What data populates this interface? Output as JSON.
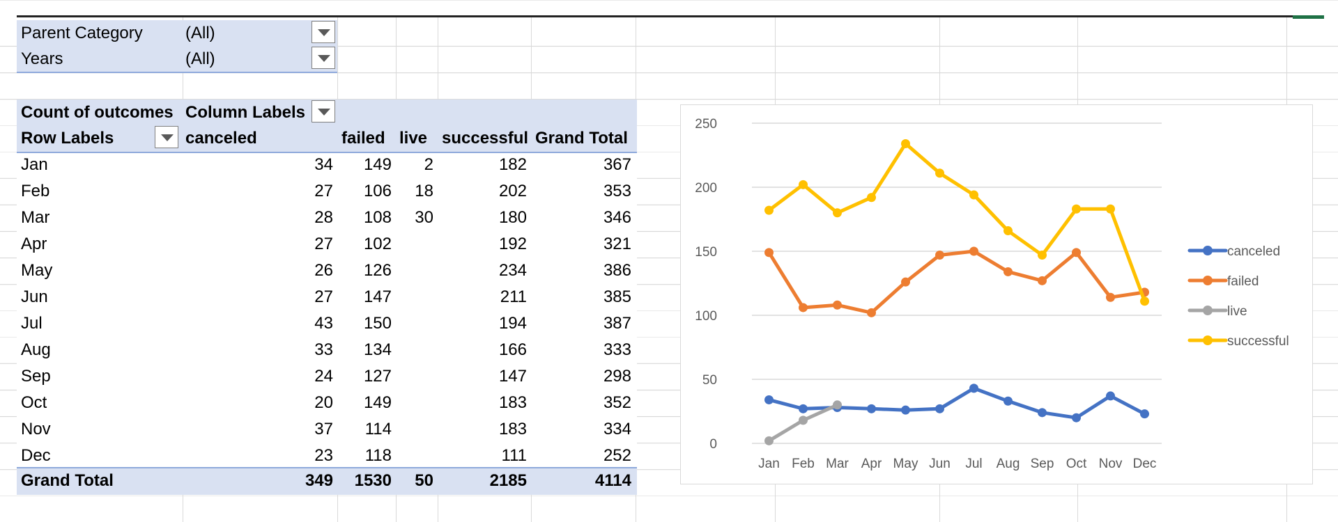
{
  "filters": [
    {
      "label": "Parent Category",
      "value": "(All)"
    },
    {
      "label": "Years",
      "value": "(All)"
    }
  ],
  "pivot": {
    "corner_label": "Count of outcomes",
    "column_labels": "Column Labels",
    "row_labels": "Row Labels",
    "columns": [
      "canceled",
      "failed",
      "live",
      "successful",
      "Grand Total"
    ],
    "rows": [
      {
        "label": "Jan",
        "values": [
          "34",
          "149",
          "2",
          "182",
          "367"
        ]
      },
      {
        "label": "Feb",
        "values": [
          "27",
          "106",
          "18",
          "202",
          "353"
        ]
      },
      {
        "label": "Mar",
        "values": [
          "28",
          "108",
          "30",
          "180",
          "346"
        ]
      },
      {
        "label": "Apr",
        "values": [
          "27",
          "102",
          "",
          "192",
          "321"
        ]
      },
      {
        "label": "May",
        "values": [
          "26",
          "126",
          "",
          "234",
          "386"
        ]
      },
      {
        "label": "Jun",
        "values": [
          "27",
          "147",
          "",
          "211",
          "385"
        ]
      },
      {
        "label": "Jul",
        "values": [
          "43",
          "150",
          "",
          "194",
          "387"
        ]
      },
      {
        "label": "Aug",
        "values": [
          "33",
          "134",
          "",
          "166",
          "333"
        ]
      },
      {
        "label": "Sep",
        "values": [
          "24",
          "127",
          "",
          "147",
          "298"
        ]
      },
      {
        "label": "Oct",
        "values": [
          "20",
          "149",
          "",
          "183",
          "352"
        ]
      },
      {
        "label": "Nov",
        "values": [
          "37",
          "114",
          "",
          "183",
          "334"
        ]
      },
      {
        "label": "Dec",
        "values": [
          "23",
          "118",
          "",
          "111",
          "252"
        ]
      }
    ],
    "total": {
      "label": "Grand Total",
      "values": [
        "349",
        "1530",
        "50",
        "2185",
        "4114"
      ]
    }
  },
  "chart_data": {
    "type": "line",
    "x": [
      "Jan",
      "Feb",
      "Mar",
      "Apr",
      "May",
      "Jun",
      "Jul",
      "Aug",
      "Sep",
      "Oct",
      "Nov",
      "Dec"
    ],
    "ylim": [
      0,
      250
    ],
    "yticks": [
      0,
      50,
      100,
      150,
      200,
      250
    ],
    "grid": true,
    "legend": "right",
    "series": [
      {
        "name": "canceled",
        "color": "#4472c4",
        "values": [
          34,
          27,
          28,
          27,
          26,
          27,
          43,
          33,
          24,
          20,
          37,
          23
        ]
      },
      {
        "name": "failed",
        "color": "#ed7d31",
        "values": [
          149,
          106,
          108,
          102,
          126,
          147,
          150,
          134,
          127,
          149,
          114,
          118
        ]
      },
      {
        "name": "live",
        "color": "#a5a5a5",
        "values": [
          2,
          18,
          30,
          null,
          null,
          null,
          null,
          null,
          null,
          null,
          null,
          null
        ]
      },
      {
        "name": "successful",
        "color": "#ffc000",
        "values": [
          182,
          202,
          180,
          192,
          234,
          211,
          194,
          166,
          147,
          183,
          183,
          111
        ]
      }
    ]
  },
  "icons": {
    "dropdown": "dropdown-arrow-icon"
  }
}
